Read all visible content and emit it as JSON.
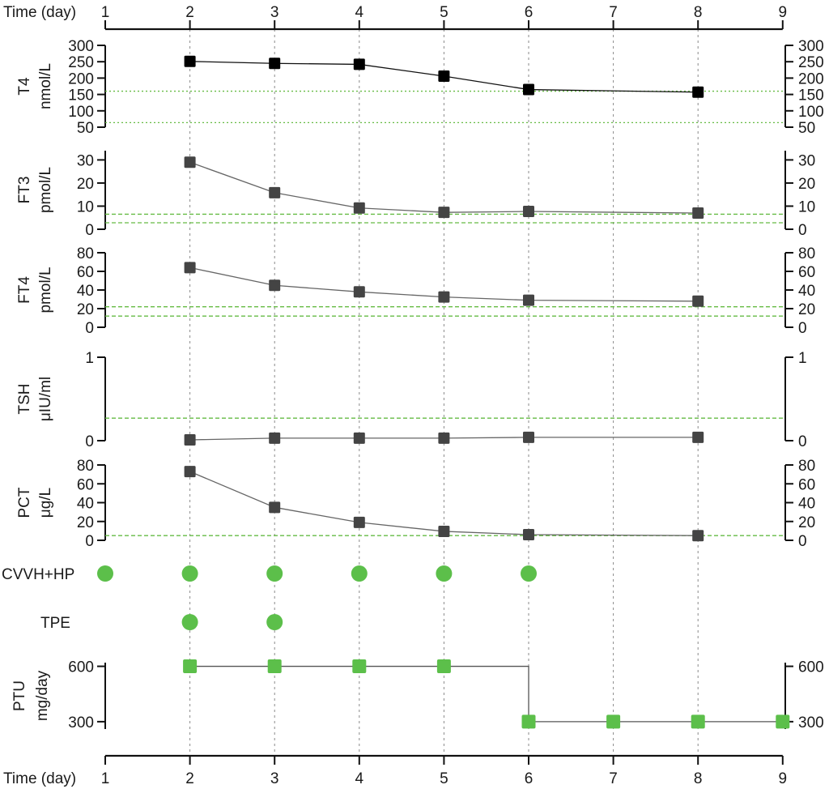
{
  "chart_data": {
    "type": "line",
    "time_axis": {
      "label": "Time (day)",
      "ticks": [
        1,
        2,
        3,
        4,
        5,
        6,
        7,
        8,
        9
      ],
      "range": [
        1,
        9
      ]
    },
    "panels": [
      {
        "id": "t4",
        "title": "T4",
        "unit": "nmol/L",
        "ylim": [
          50,
          300
        ],
        "ticks": [
          50,
          100,
          150,
          200,
          250,
          300
        ],
        "reference_lines": [
          160,
          64
        ],
        "marker_color": "#000000",
        "line_color": "#111111",
        "x": [
          2,
          3,
          4,
          5,
          6,
          8
        ],
        "values": [
          251,
          245,
          242,
          206,
          165,
          157
        ]
      },
      {
        "id": "ft3",
        "title": "FT3",
        "unit": "pmol/L",
        "ylim": [
          0,
          34
        ],
        "ticks": [
          0,
          10,
          20,
          30
        ],
        "reference_lines": [
          6.5,
          2.8
        ],
        "marker_color": "#444444",
        "line_color": "#666666",
        "x": [
          2,
          3,
          4,
          5,
          6,
          8
        ],
        "values": [
          29,
          15.8,
          9.2,
          7.3,
          7.7,
          7.0
        ]
      },
      {
        "id": "ft4",
        "title": "FT4",
        "unit": "pmol/L",
        "ylim": [
          0,
          80
        ],
        "ticks": [
          0,
          20,
          40,
          60,
          80
        ],
        "reference_lines": [
          22,
          12
        ],
        "marker_color": "#444444",
        "line_color": "#666666",
        "x": [
          2,
          3,
          4,
          5,
          6,
          8
        ],
        "values": [
          64,
          45,
          38,
          32.5,
          29,
          28
        ]
      },
      {
        "id": "tsh",
        "title": "TSH",
        "unit": "μIU/ml",
        "ylim": [
          0,
          1
        ],
        "ticks": [
          0,
          1
        ],
        "reference_lines": [
          0.27
        ],
        "marker_color": "#444444",
        "line_color": "#666666",
        "x": [
          2,
          3,
          4,
          5,
          6,
          8
        ],
        "values": [
          0.01,
          0.03,
          0.03,
          0.03,
          0.04,
          0.04
        ]
      },
      {
        "id": "pct",
        "title": "PCT",
        "unit": "μg/L",
        "ylim": [
          0,
          80
        ],
        "ticks": [
          0,
          20,
          40,
          60,
          80
        ],
        "reference_lines": [
          5
        ],
        "marker_color": "#444444",
        "line_color": "#666666",
        "x": [
          2,
          3,
          4,
          5,
          6,
          8
        ],
        "values": [
          73,
          35,
          19,
          9.5,
          6,
          5
        ]
      }
    ],
    "treatments": [
      {
        "id": "cvvh",
        "label": "CVVH+HP",
        "days": [
          1,
          2,
          3,
          4,
          5,
          6
        ]
      },
      {
        "id": "tpe",
        "label": "TPE",
        "days": [
          2,
          3
        ]
      }
    ],
    "dose_panel": {
      "id": "ptu",
      "title": "PTU",
      "unit": "mg/day",
      "ticks": [
        300,
        600
      ],
      "ylim": [
        260,
        620
      ],
      "x": [
        2,
        3,
        4,
        5,
        6,
        7,
        8,
        9
      ],
      "values": [
        600,
        600,
        600,
        600,
        300,
        300,
        300,
        300
      ],
      "step_at": 6
    },
    "reference_line_color": "#66bb44",
    "point_marker_color": "#5cbf4a"
  }
}
